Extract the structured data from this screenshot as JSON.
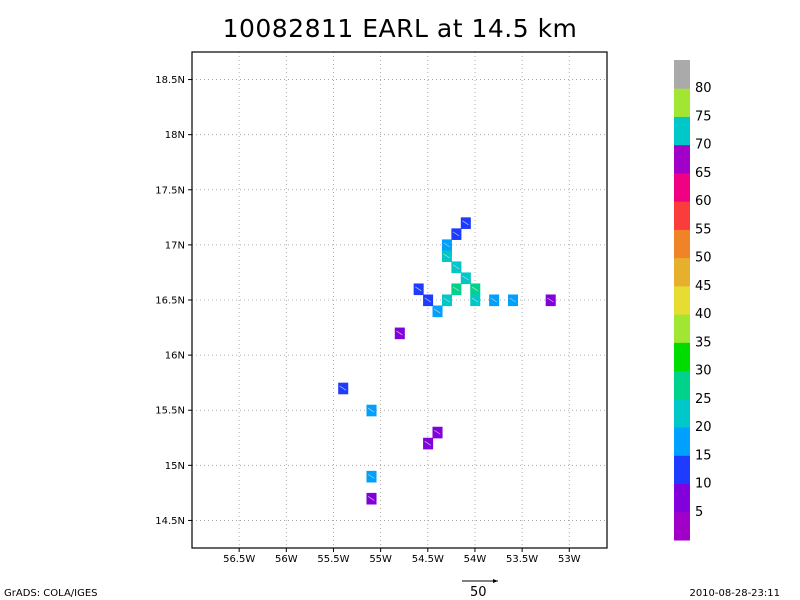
{
  "title": "10082811 EARL at 14.5 km",
  "footer": {
    "left": "GrADS: COLA/IGES",
    "right": "2010-08-28-23:11",
    "vector_scale": "50"
  },
  "chart_data": {
    "type": "heatmap",
    "title": "10082811 EARL at 14.5 km",
    "xlim": [
      -57.0,
      -52.6
    ],
    "ylim": [
      14.25,
      18.75
    ],
    "x_ticks": [
      -56.5,
      -56.0,
      -55.5,
      -55.0,
      -54.5,
      -54.0,
      -53.5,
      -53.0
    ],
    "x_tick_labels": [
      "56.5W",
      "56W",
      "55.5W",
      "55W",
      "54.5W",
      "54W",
      "53.5W",
      "53W"
    ],
    "y_ticks": [
      14.5,
      15.0,
      15.5,
      16.0,
      16.5,
      17.0,
      17.5,
      18.0,
      18.5
    ],
    "y_tick_labels": [
      "14.5N",
      "15N",
      "15.5N",
      "16N",
      "16.5N",
      "17N",
      "17.5N",
      "18N",
      "18.5N"
    ],
    "grid": true,
    "colorbar": {
      "labels": [
        "5",
        "10",
        "15",
        "20",
        "25",
        "30",
        "35",
        "40",
        "45",
        "50",
        "55",
        "60",
        "65",
        "70",
        "75",
        "80"
      ],
      "colors": [
        "#a000c8",
        "#8200dc",
        "#1e3cff",
        "#00a0ff",
        "#00c8c8",
        "#00d28c",
        "#00dc00",
        "#a0e632",
        "#e6dc32",
        "#e6af2d",
        "#f08228",
        "#fa3c3c",
        "#f00082",
        "#a000c8",
        "#00c8c8",
        "#a0e632",
        "#aaaaaa"
      ]
    },
    "cells": [
      {
        "lon": -54.1,
        "lat": 17.2,
        "value": 12
      },
      {
        "lon": -54.2,
        "lat": 17.1,
        "value": 14
      },
      {
        "lon": -54.3,
        "lat": 17.0,
        "value": 18
      },
      {
        "lon": -54.3,
        "lat": 16.9,
        "value": 20
      },
      {
        "lon": -54.2,
        "lat": 16.8,
        "value": 22
      },
      {
        "lon": -54.1,
        "lat": 16.7,
        "value": 24
      },
      {
        "lon": -54.2,
        "lat": 16.6,
        "value": 26
      },
      {
        "lon": -54.0,
        "lat": 16.6,
        "value": 28
      },
      {
        "lon": -54.3,
        "lat": 16.5,
        "value": 20
      },
      {
        "lon": -54.0,
        "lat": 16.5,
        "value": 22
      },
      {
        "lon": -54.5,
        "lat": 16.5,
        "value": 14
      },
      {
        "lon": -54.6,
        "lat": 16.6,
        "value": 12
      },
      {
        "lon": -54.4,
        "lat": 16.4,
        "value": 16
      },
      {
        "lon": -53.8,
        "lat": 16.5,
        "value": 15
      },
      {
        "lon": -53.6,
        "lat": 16.5,
        "value": 18
      },
      {
        "lon": -53.2,
        "lat": 16.5,
        "value": 5
      },
      {
        "lon": -54.8,
        "lat": 16.2,
        "value": 6
      },
      {
        "lon": -55.4,
        "lat": 15.7,
        "value": 13
      },
      {
        "lon": -55.1,
        "lat": 15.5,
        "value": 15
      },
      {
        "lon": -54.4,
        "lat": 15.3,
        "value": 7
      },
      {
        "lon": -54.5,
        "lat": 15.2,
        "value": 6
      },
      {
        "lon": -55.1,
        "lat": 14.9,
        "value": 15
      },
      {
        "lon": -55.1,
        "lat": 14.7,
        "value": 6
      }
    ]
  }
}
